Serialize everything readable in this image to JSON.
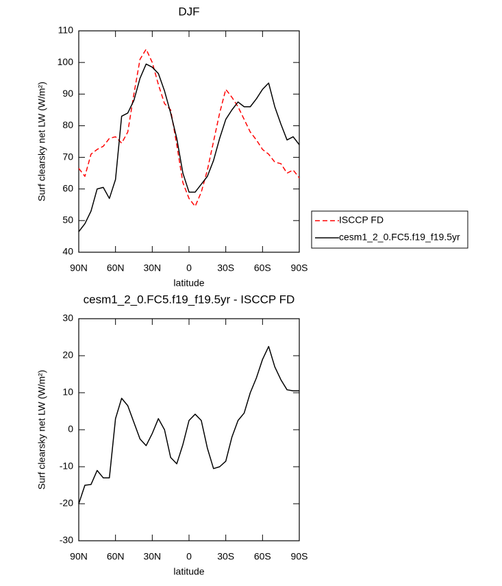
{
  "chart_data": [
    {
      "type": "line",
      "title": "DJF",
      "xlabel": "latitude",
      "ylabel": "Surf clearsky net LW (W/m²)",
      "x": [
        90,
        85,
        80,
        75,
        70,
        65,
        60,
        55,
        50,
        45,
        40,
        35,
        30,
        25,
        20,
        15,
        10,
        5,
        0,
        -5,
        -10,
        -15,
        -20,
        -25,
        -30,
        -35,
        -40,
        -45,
        -50,
        -55,
        -60,
        -65,
        -70,
        -75,
        -80,
        -85,
        -90
      ],
      "xlim": [
        90,
        -90
      ],
      "xticks": [
        {
          "value": 90,
          "label": "90N"
        },
        {
          "value": 60,
          "label": "60N"
        },
        {
          "value": 30,
          "label": "30N"
        },
        0,
        {
          "value": -30,
          "label": "30S"
        },
        {
          "value": -60,
          "label": "60S"
        },
        {
          "value": -90,
          "label": "90S"
        }
      ],
      "ylim": [
        40,
        110
      ],
      "yticks": [
        40,
        50,
        60,
        70,
        80,
        90,
        100,
        110
      ],
      "legend": "outside right",
      "series": [
        {
          "name": "ISCCP FD",
          "color": "#ff0000",
          "dashed": true,
          "values": [
            66.5,
            64,
            71,
            72.5,
            73.5,
            76,
            76.5,
            74.5,
            78,
            90,
            101,
            104.2,
            100,
            93,
            87,
            85,
            74,
            62,
            57,
            54.5,
            59,
            66,
            75,
            84,
            91.5,
            89,
            86,
            82,
            78,
            75.5,
            72.5,
            71,
            68.5,
            68,
            65,
            66,
            63.5
          ]
        },
        {
          "name": "cesm1_2_0.FC5.f19_f19.5yr",
          "color": "#000000",
          "dashed": false,
          "values": [
            46.5,
            49,
            53,
            60,
            60.5,
            57,
            63,
            83,
            84,
            88,
            95,
            99.5,
            98.5,
            96.5,
            91,
            84,
            76,
            65,
            59,
            59,
            61.5,
            64,
            69,
            76,
            82,
            85,
            87.5,
            86,
            86,
            88.5,
            91.5,
            93.5,
            86,
            80.5,
            75.5,
            76.5,
            74
          ]
        }
      ]
    },
    {
      "type": "line",
      "title": "cesm1_2_0.FC5.f19_f19.5yr - ISCCP FD",
      "xlabel": "latitude",
      "ylabel": "Surf clearsky net LW (W/m²)",
      "x": [
        90,
        85,
        80,
        75,
        70,
        65,
        60,
        55,
        50,
        45,
        40,
        35,
        30,
        25,
        20,
        15,
        10,
        5,
        0,
        -5,
        -10,
        -15,
        -20,
        -25,
        -30,
        -35,
        -40,
        -45,
        -50,
        -55,
        -60,
        -65,
        -70,
        -75,
        -80,
        -85,
        -90
      ],
      "xlim": [
        90,
        -90
      ],
      "xticks": [
        {
          "value": 90,
          "label": "90N"
        },
        {
          "value": 60,
          "label": "60N"
        },
        {
          "value": 30,
          "label": "30N"
        },
        0,
        {
          "value": -30,
          "label": "30S"
        },
        {
          "value": -60,
          "label": "60S"
        },
        {
          "value": -90,
          "label": "90S"
        }
      ],
      "ylim": [
        -30,
        30
      ],
      "yticks": [
        -30,
        -20,
        -10,
        0,
        10,
        20,
        30
      ],
      "series": [
        {
          "color": "#000000",
          "dashed": false,
          "values": [
            -20,
            -15,
            -14.8,
            -11,
            -13,
            -13,
            3,
            8.5,
            6.5,
            2,
            -2.5,
            -4.3,
            -1,
            3,
            0,
            -7.5,
            -9.2,
            -4,
            2.5,
            4.2,
            2.5,
            -5,
            -10.5,
            -10,
            -8.5,
            -2,
            2.5,
            4.5,
            10,
            14,
            19,
            22.5,
            17,
            13.5,
            10.8,
            10.5,
            10.5
          ]
        }
      ]
    }
  ]
}
